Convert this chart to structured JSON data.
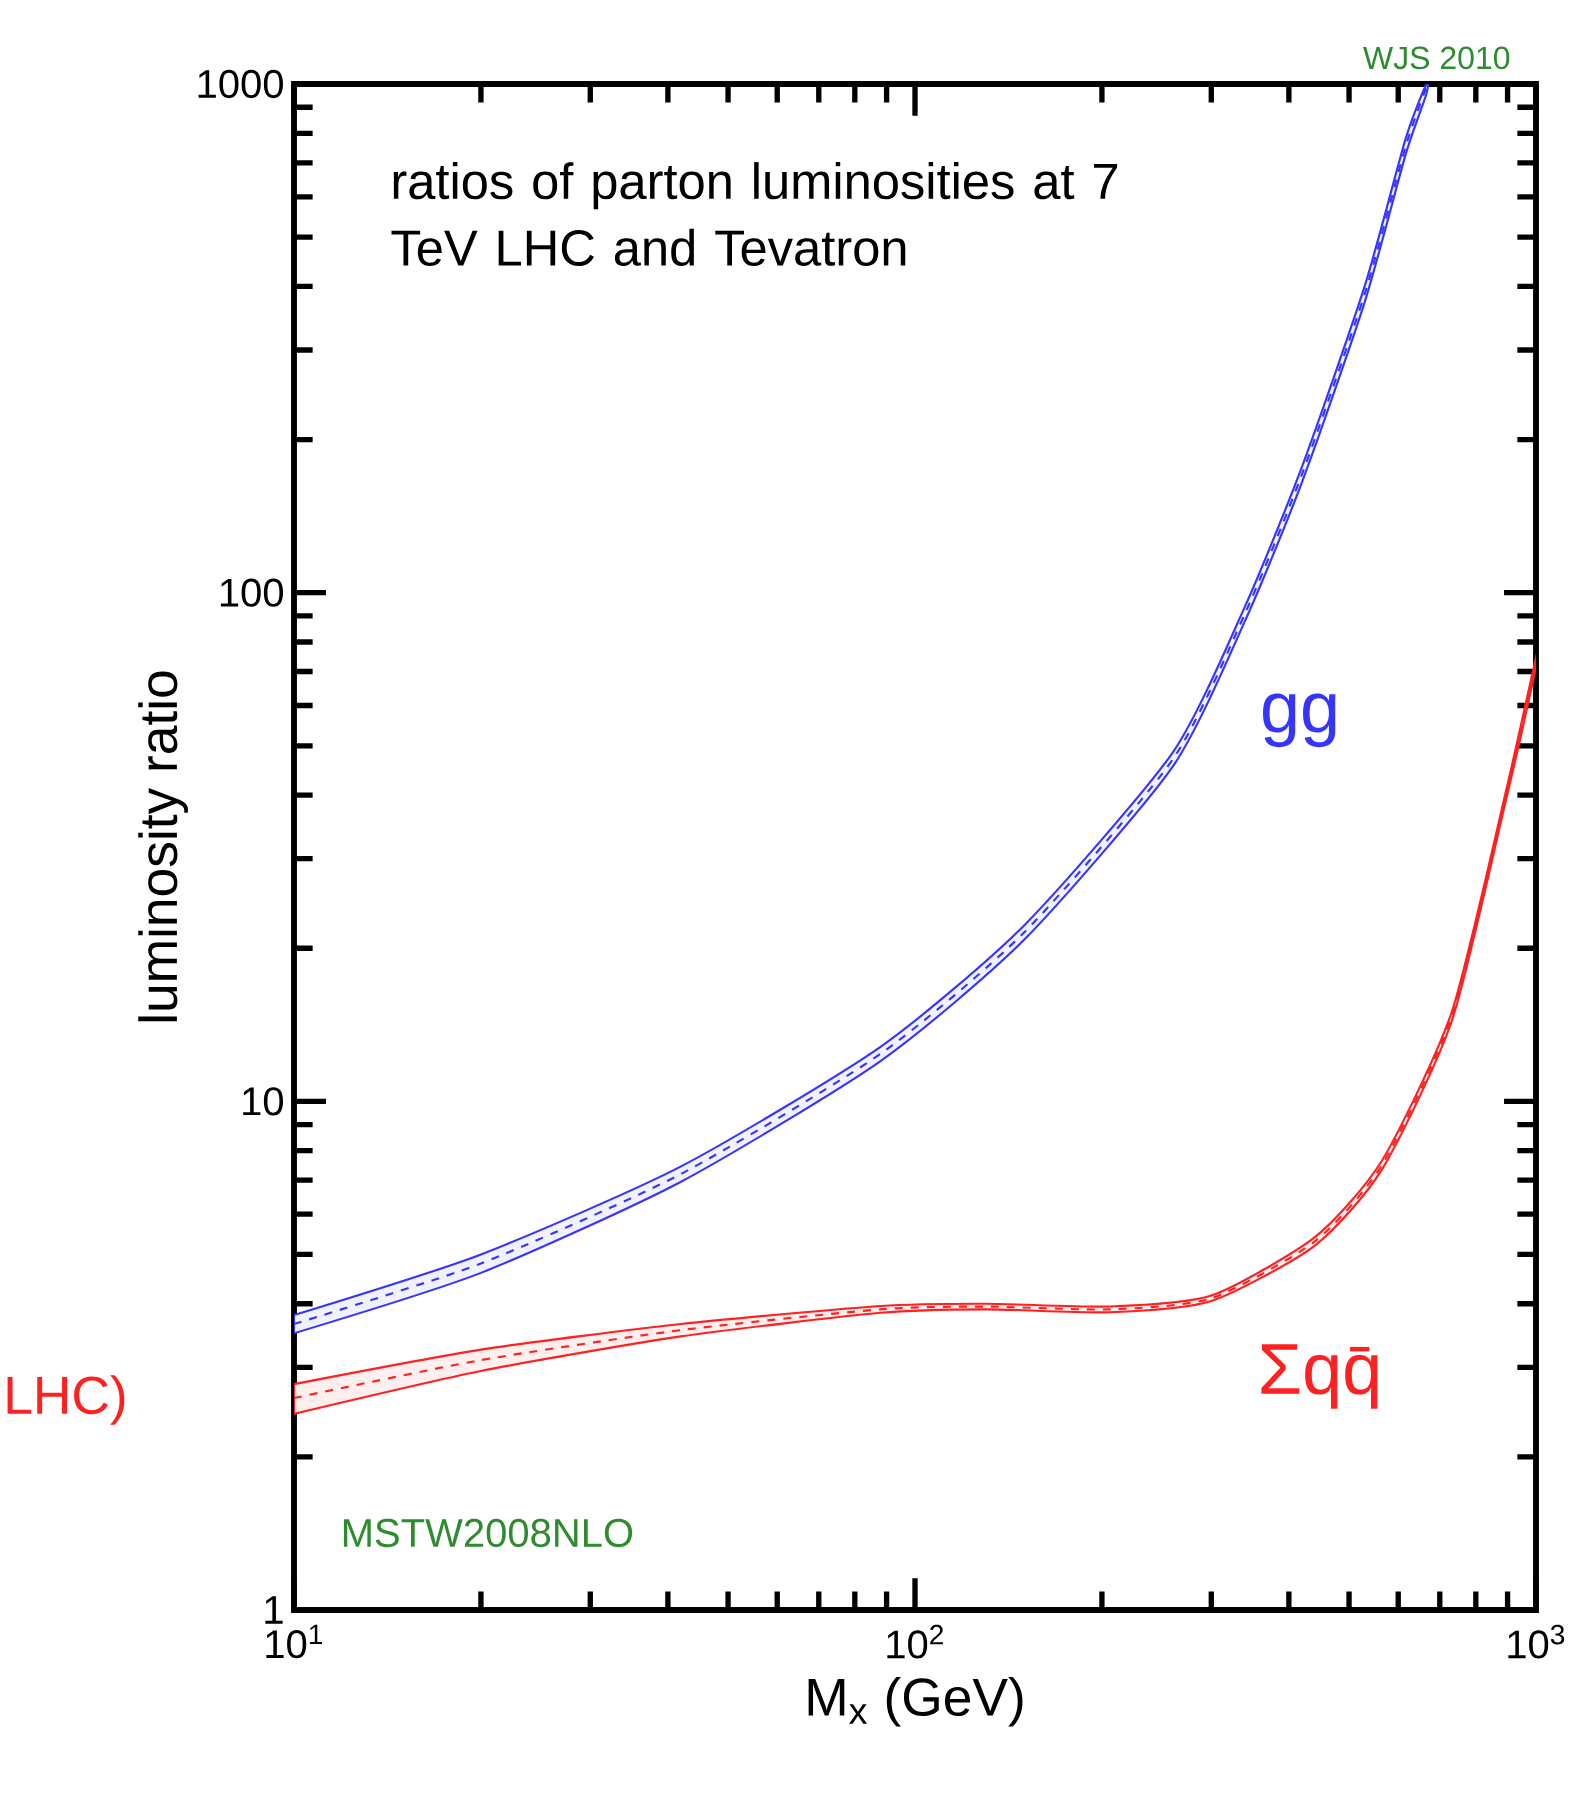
{
  "chart_data": {
    "type": "line",
    "title": "ratios of parton luminosities at 7 TeV LHC and Tevatron",
    "xlabel": "M$_{x}$ (GeV)",
    "ylabel": "luminosity ratio",
    "log": "xy",
    "xlim": [
      10,
      1000
    ],
    "ylim": [
      1,
      1000
    ],
    "xticks": [
      {
        "value": 10,
        "label": "10$^{1}$"
      },
      {
        "value": 100,
        "label": "10$^{2}$"
      },
      {
        "value": 1000,
        "label": "10$^{3}$"
      }
    ],
    "yticks": [
      1,
      10,
      100,
      1000
    ],
    "series": [
      {
        "name": "gg",
        "color": "#3535ff",
        "line_style": "dashed",
        "x": [
          10,
          20,
          42,
          88,
          150,
          260,
          340,
          420,
          530,
          617,
          666
        ],
        "values": [
          3.65,
          4.8,
          7.2,
          12.4,
          21.5,
          47,
          91,
          171,
          387,
          755,
          985
        ],
        "lower": [
          3.5,
          4.6,
          6.95,
          12.0,
          20.8,
          45.5,
          88,
          165,
          373,
          728,
          955
        ],
        "upper": [
          3.8,
          5.0,
          7.45,
          12.8,
          22.2,
          48.5,
          94,
          177,
          401,
          782,
          1000
        ]
      },
      {
        "name": "Σqq̄",
        "color": "#ff2020",
        "line_style": "dashed",
        "x": [
          10,
          20,
          42,
          88,
          130,
          206,
          300,
          440,
          565,
          732,
          895,
          1000
        ],
        "values": [
          2.61,
          3.1,
          3.55,
          3.9,
          3.95,
          3.9,
          4.1,
          5.3,
          7.5,
          14.7,
          40,
          73
        ],
        "lower": [
          2.43,
          2.95,
          3.45,
          3.84,
          3.9,
          3.85,
          4.05,
          5.2,
          7.35,
          14.4,
          39.2,
          71.5
        ],
        "upper": [
          2.78,
          3.25,
          3.65,
          3.96,
          4.0,
          3.95,
          4.15,
          5.4,
          7.65,
          15.0,
          40.8,
          74.5
        ]
      }
    ],
    "annotations": [
      "WJS 2010",
      "MSTW2008NLO",
      "LHC)"
    ]
  }
}
